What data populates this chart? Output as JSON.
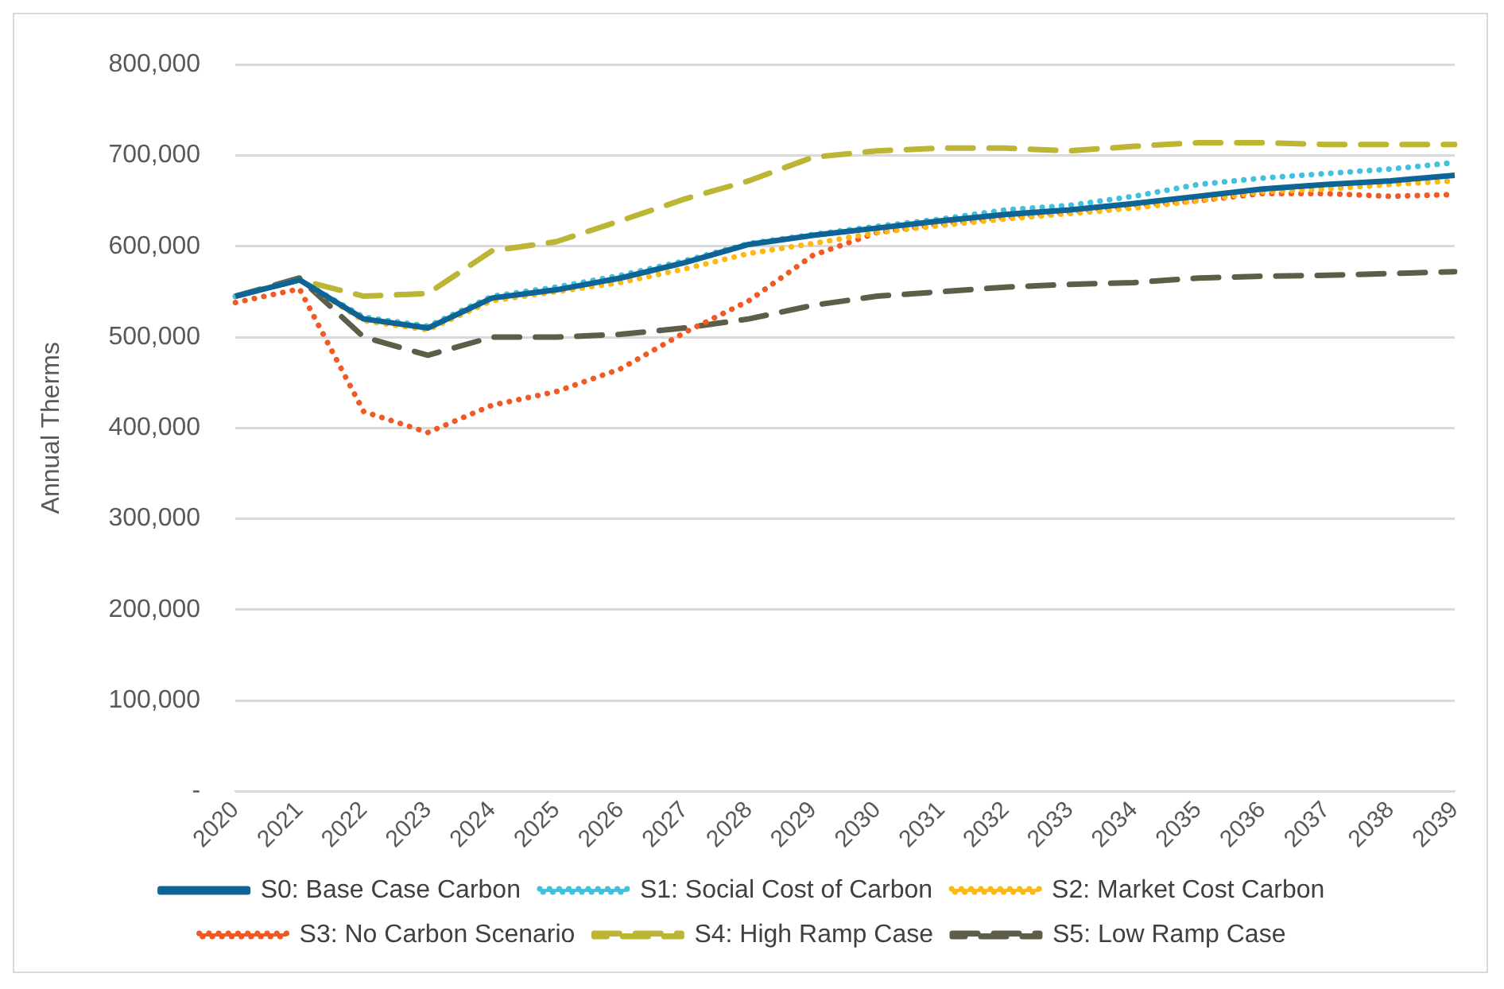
{
  "chart_data": {
    "type": "line",
    "ylabel": "Annual Therms",
    "categories": [
      "2020",
      "2021",
      "2022",
      "2023",
      "2024",
      "2025",
      "2026",
      "2027",
      "2028",
      "2029",
      "2030",
      "2031",
      "2032",
      "2033",
      "2034",
      "2035",
      "2036",
      "2037",
      "2038",
      "2039"
    ],
    "series": [
      {
        "name": "S0: Base Case Carbon",
        "color": "#0e6495",
        "line_style": "solid",
        "values": [
          545000,
          563000,
          520000,
          510000,
          543000,
          552000,
          565000,
          582000,
          602000,
          612000,
          620000,
          628000,
          635000,
          640000,
          647000,
          655000,
          663000,
          668000,
          672000,
          678000
        ]
      },
      {
        "name": "S1: Social Cost of Carbon",
        "color": "#40c1dd",
        "line_style": "dotted",
        "values": [
          545000,
          563000,
          522000,
          512000,
          545000,
          555000,
          568000,
          584000,
          603000,
          613000,
          622000,
          630000,
          640000,
          645000,
          655000,
          668000,
          675000,
          680000,
          685000,
          692000
        ]
      },
      {
        "name": "S2: Market Cost Carbon",
        "color": "#fdb913",
        "line_style": "dotted",
        "values": [
          545000,
          563000,
          518000,
          508000,
          540000,
          550000,
          560000,
          575000,
          592000,
          603000,
          615000,
          623000,
          630000,
          636000,
          642000,
          650000,
          660000,
          663000,
          668000,
          672000
        ]
      },
      {
        "name": "S3: No Carbon Scenario",
        "color": "#f15a24",
        "line_style": "dotted",
        "values": [
          538000,
          553000,
          418000,
          395000,
          425000,
          440000,
          465000,
          505000,
          540000,
          590000,
          615000,
          625000,
          632000,
          638000,
          645000,
          650000,
          658000,
          658000,
          655000,
          657000
        ]
      },
      {
        "name": "S4: High Ramp Case",
        "color": "#bdb534",
        "line_style": "dashed",
        "values": [
          545000,
          563000,
          545000,
          548000,
          595000,
          605000,
          628000,
          652000,
          672000,
          698000,
          705000,
          708000,
          708000,
          705000,
          710000,
          714000,
          714000,
          712000,
          712000,
          712000
        ]
      },
      {
        "name": "S5: Low Ramp Case",
        "color": "#5e5e48",
        "line_style": "dashed",
        "values": [
          545000,
          565000,
          500000,
          480000,
          500000,
          500000,
          503000,
          510000,
          520000,
          535000,
          545000,
          550000,
          555000,
          558000,
          560000,
          565000,
          567000,
          568000,
          570000,
          572000
        ]
      }
    ],
    "ylim": [
      0,
      800000
    ],
    "yticks": [
      {
        "value": 0,
        "label": "-"
      },
      {
        "value": 100000,
        "label": "100,000"
      },
      {
        "value": 200000,
        "label": "200,000"
      },
      {
        "value": 300000,
        "label": "300,000"
      },
      {
        "value": 400000,
        "label": "400,000"
      },
      {
        "value": 500000,
        "label": "500,000"
      },
      {
        "value": 600000,
        "label": "600,000"
      },
      {
        "value": 700000,
        "label": "700,000"
      },
      {
        "value": 800000,
        "label": "800,000"
      }
    ],
    "grid": "y",
    "legend": "bottom",
    "marker": "none"
  }
}
